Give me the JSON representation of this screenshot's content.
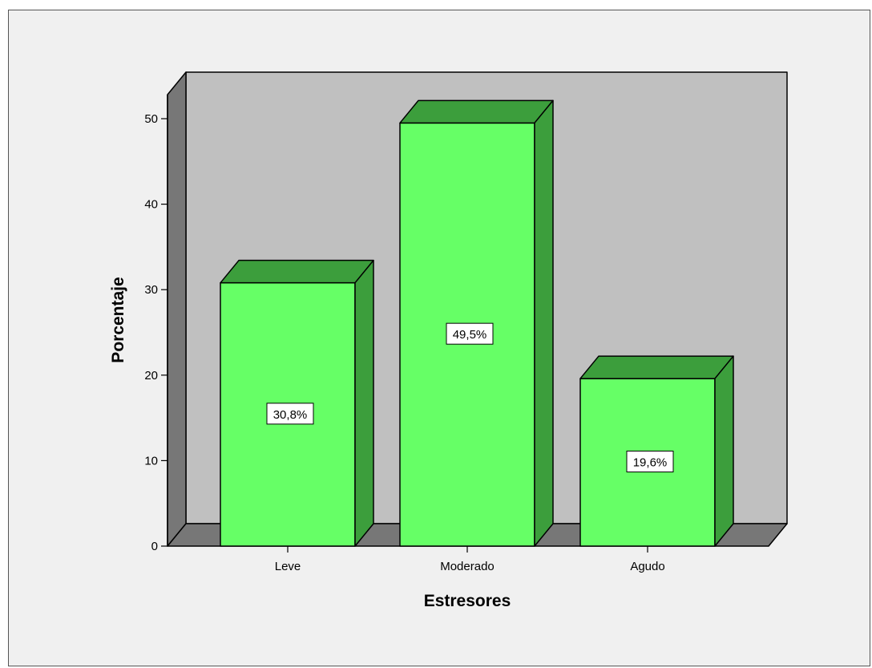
{
  "chart_data": {
    "type": "bar",
    "title": "",
    "xlabel": "Estresores",
    "ylabel": "Porcentaje",
    "categories": [
      "Leve",
      "Moderado",
      "Agudo"
    ],
    "values": [
      30.8,
      49.5,
      19.6
    ],
    "data_labels": [
      "30,8%",
      "49,5%",
      "19,6%"
    ],
    "ylim": [
      0,
      50
    ],
    "yticks": [
      0,
      10,
      20,
      30,
      40,
      50
    ],
    "ytick_labels": [
      "0",
      "10",
      "20",
      "30",
      "40",
      "50"
    ],
    "grid": false,
    "legend": "none",
    "style": "3d",
    "colors": {
      "bar_front": "#66ff66",
      "bar_top": "#3c9e3c",
      "bar_side": "#3c9e3c",
      "back_wall": "#c0c0c0",
      "side_wall": "#777777",
      "floor": "#777777",
      "frame_background": "#f0f0f0"
    }
  }
}
